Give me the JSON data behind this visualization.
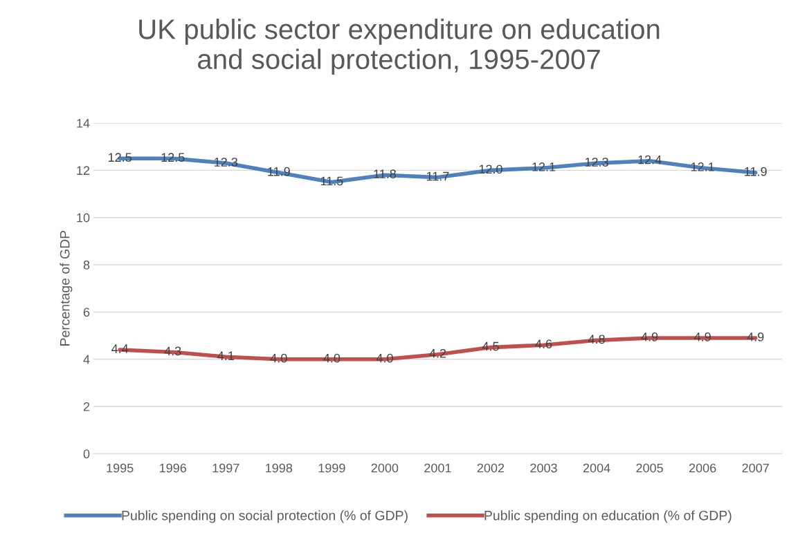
{
  "chart_data": {
    "type": "line",
    "title": "UK public sector expenditure on education\nand social protection, 1995-2007",
    "ylabel": "Percentage of GDP",
    "categories": [
      "1995",
      "1996",
      "1997",
      "1998",
      "1999",
      "2000",
      "2001",
      "2002",
      "2003",
      "2004",
      "2005",
      "2006",
      "2007"
    ],
    "series": [
      {
        "name": "Public spending on social protection (% of GDP)",
        "color": "#4f81bd",
        "values": [
          12.5,
          12.5,
          12.3,
          11.9,
          11.5,
          11.8,
          11.7,
          12.0,
          12.1,
          12.3,
          12.4,
          12.1,
          11.9
        ],
        "value_labels": [
          "12.5",
          "12.5",
          "12.3",
          "11.9",
          "11.5",
          "11.8",
          "11.7",
          "12.0",
          "12.1",
          "12.3",
          "12.4",
          "12.1",
          "11.9"
        ]
      },
      {
        "name": "Public spending on education (% of GDP)",
        "color": "#c0504d",
        "values": [
          4.4,
          4.3,
          4.1,
          4.0,
          4.0,
          4.0,
          4.2,
          4.5,
          4.6,
          4.8,
          4.9,
          4.9,
          4.9
        ],
        "value_labels": [
          "4.4",
          "4.3",
          "4.1",
          "4.0",
          "4.0",
          "4.0",
          "4.2",
          "4.5",
          "4.6",
          "4.8",
          "4.9",
          "4.9",
          "4.9"
        ]
      }
    ],
    "ylim": [
      0,
      14
    ],
    "yticks": [
      0,
      2,
      4,
      6,
      8,
      10,
      12,
      14
    ],
    "grid": "y",
    "legend": "bottom",
    "marker": "none",
    "line_style": "solid"
  }
}
